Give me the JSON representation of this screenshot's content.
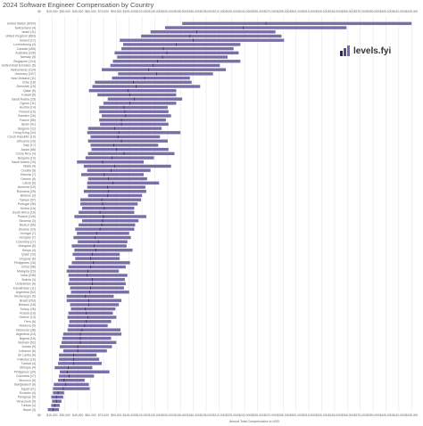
{
  "title": "2024 Software Engineer Compensation by Country",
  "logo": {
    "text": "levels.fyi",
    "icon": "levels-fyi-logo-icon"
  },
  "colors": {
    "bar": "#7A6EA8",
    "median": "#2E2550",
    "grid": "#E6E6E6",
    "text": "#666666"
  },
  "chart_data": {
    "type": "bar",
    "orientation": "horizontal",
    "title": "2024 Software Engineer Compensation by Country",
    "xlabel": "Annual Total Compensation in USD",
    "ylabel": "",
    "xlim": [
      0,
      440000
    ],
    "x_ticks": [
      0,
      15000,
      30000,
      45000,
      60000,
      75000,
      90000,
      105000,
      120000,
      135000,
      150000,
      165000,
      180000,
      195000,
      210000,
      225000,
      240000,
      255000,
      270000,
      285000,
      300000,
      315000,
      330000,
      345000,
      360000,
      375000,
      390000,
      405000,
      420000,
      435000
    ],
    "x_tick_labels": [
      "$0",
      "$15,000",
      "$30,000",
      "$45,000",
      "$60,000",
      "$75,000",
      "$90,000",
      "$105,000",
      "$120,000",
      "$135,000",
      "$150,000",
      "$165,000",
      "$180,000",
      "$195,000",
      "$210,000",
      "$225,000",
      "$240,000",
      "$255,000",
      "$270,000",
      "$285,000",
      "$300,000",
      "$315,000",
      "$330,000",
      "$345,000",
      "$360,000",
      "$375,000",
      "$390,000",
      "$405,000",
      "$420,000",
      "$435,000"
    ],
    "grid": true,
    "series": [
      {
        "categories": [
          "United States (6000)",
          "Switzerland (4)",
          "Israel (11)",
          "United Kingdom (863)",
          "Ireland (17)",
          "Luxembourg (4)",
          "Canada (455)",
          "Australia (228)",
          "Norway (5)",
          "Singapore (114)",
          "United Arab Emirates (5)",
          "Netherlands (124)",
          "Germany (297)",
          "New Zealand (11)",
          "Chile (18)",
          "Denmark (15)",
          "Qatar (5)",
          "Kuwait (5)",
          "Saudi Arabia (15)",
          "Cyprus (11)",
          "Austria (14)",
          "Finland (16)",
          "Sweden (26)",
          "France (85)",
          "Spain (41)",
          "Belgium (12)",
          "Hong Kong (34)",
          "Czech Republic (19)",
          "Lithuania (10)",
          "Italy (17)",
          "Japan (68)",
          "Costa Rica (4)",
          "Bulgaria (10)",
          "Saudi Arabia (15)",
          "Malta (4)",
          "Croatia (5)",
          "Estonia (7)",
          "Greece (9)",
          "Latvia (5)",
          "Armenia (15)",
          "Romania (29)",
          "Belarus (3)",
          "Taiwan (57)",
          "Portugal (36)",
          "Serbia (16)",
          "South Africa (16)",
          "Poland (126)",
          "Slovenia (3)",
          "Mexico (56)",
          "Ukraine (23)",
          "Georgia (7)",
          "Hungary (7)",
          "Colombia (17)",
          "Mongolia (5)",
          "Kenya (4)",
          "Qatar (10)",
          "Uruguay (6)",
          "Philippines (16)",
          "China (58)",
          "Malaysia (20)",
          "India (238)",
          "Bolivia (3)",
          "Uzbekistan (6)",
          "Kazakhstan (11)",
          "Argentina (52)",
          "Montenegro (5)",
          "Brazil (203)",
          "Belarus (18)",
          "Turkey (28)",
          "Russia (18)",
          "Greece (13)",
          "Peru (6)",
          "Moldova (5)",
          "Indonesia (38)",
          "Argentina (24)",
          "Nigeria (15)",
          "Vietnam (52)",
          "Jordan (9)",
          "Lebanon (6)",
          "Sri Lanka (6)",
          "Pakistan (16)",
          "Tunisia (4)",
          "Ethiopia (4)",
          "Philippines (24)",
          "Colombia (17)",
          "Morocco (5)",
          "Bangladesh (6)",
          "Egypt (21)",
          "Ecuador (4)",
          "Paraguay (5)",
          "Venezuela (5)",
          "Tunisia (4)",
          "Nepal (3)"
        ],
        "ranges": [
          [
            167000,
            435000
          ],
          [
            147000,
            359000
          ],
          [
            130000,
            276000
          ],
          [
            119000,
            283000
          ],
          [
            94000,
            286000
          ],
          [
            98000,
            235000
          ],
          [
            96000,
            227000
          ],
          [
            88000,
            233000
          ],
          [
            91000,
            220000
          ],
          [
            86000,
            235000
          ],
          [
            83000,
            211000
          ],
          [
            73000,
            218000
          ],
          [
            92000,
            203000
          ],
          [
            85000,
            176000
          ],
          [
            65000,
            178000
          ],
          [
            62000,
            188000
          ],
          [
            58000,
            160000
          ],
          [
            68000,
            160000
          ],
          [
            80000,
            167000
          ],
          [
            75000,
            160000
          ],
          [
            70000,
            150000
          ],
          [
            70000,
            151000
          ],
          [
            73000,
            154000
          ],
          [
            70000,
            148000
          ],
          [
            71000,
            151000
          ],
          [
            57000,
            143000
          ],
          [
            56000,
            165000
          ],
          [
            60000,
            141000
          ],
          [
            57000,
            150000
          ],
          [
            60000,
            139000
          ],
          [
            61000,
            151000
          ],
          [
            57000,
            158000
          ],
          [
            54000,
            134000
          ],
          [
            44000,
            122000
          ],
          [
            52000,
            154000
          ],
          [
            56000,
            130000
          ],
          [
            49000,
            122000
          ],
          [
            57000,
            126000
          ],
          [
            56000,
            140000
          ],
          [
            56000,
            124000
          ],
          [
            52000,
            125000
          ],
          [
            57000,
            120000
          ],
          [
            48000,
            119000
          ],
          [
            48000,
            115000
          ],
          [
            50000,
            111000
          ],
          [
            46000,
            111000
          ],
          [
            41000,
            125000
          ],
          [
            50000,
            116000
          ],
          [
            46000,
            112000
          ],
          [
            42000,
            111000
          ],
          [
            44000,
            105000
          ],
          [
            40000,
            107000
          ],
          [
            45000,
            103000
          ],
          [
            38000,
            102000
          ],
          [
            41000,
            109000
          ],
          [
            39000,
            94000
          ],
          [
            42000,
            94000
          ],
          [
            38000,
            106000
          ],
          [
            34000,
            101000
          ],
          [
            32000,
            93000
          ],
          [
            34000,
            103000
          ],
          [
            35000,
            100000
          ],
          [
            34000,
            101000
          ],
          [
            36000,
            99000
          ],
          [
            37000,
            105000
          ],
          [
            32000,
            87000
          ],
          [
            32000,
            96000
          ],
          [
            36000,
            93000
          ],
          [
            37000,
            89000
          ],
          [
            34000,
            86000
          ],
          [
            33000,
            90000
          ],
          [
            35000,
            84000
          ],
          [
            34000,
            80000
          ],
          [
            33000,
            95000
          ],
          [
            28000,
            96000
          ],
          [
            27000,
            84000
          ],
          [
            26000,
            90000
          ],
          [
            24000,
            85000
          ],
          [
            28000,
            79000
          ],
          [
            23000,
            67000
          ],
          [
            23000,
            70000
          ],
          [
            22000,
            73000
          ],
          [
            18000,
            62000
          ],
          [
            24000,
            82000
          ],
          [
            23000,
            64000
          ],
          [
            22000,
            53000
          ],
          [
            17000,
            58000
          ],
          [
            16000,
            59000
          ],
          [
            16000,
            29000
          ],
          [
            14000,
            28000
          ],
          [
            15000,
            26000
          ],
          [
            14000,
            24000
          ],
          [
            10000,
            23000
          ]
        ],
        "medians": [
          265000,
          238000,
          184000,
          176000,
          180000,
          160000,
          145000,
          149000,
          144000,
          138000,
          133000,
          128000,
          137000,
          123000,
          110000,
          113000,
          104000,
          106000,
          111000,
          106000,
          99000,
          100000,
          101000,
          96000,
          96000,
          88000,
          93000,
          92000,
          96000,
          87000,
          90000,
          99000,
          85000,
          74000,
          88000,
          84000,
          76000,
          81000,
          86000,
          80000,
          81000,
          80000,
          73000,
          74000,
          76000,
          71000,
          75000,
          74000,
          73000,
          71000,
          67000,
          65000,
          69000,
          64000,
          66000,
          62000,
          60000,
          63000,
          60000,
          57000,
          56000,
          62000,
          62000,
          60000,
          59000,
          54000,
          58000,
          58000,
          54000,
          55000,
          57000,
          55000,
          53000,
          50000,
          48000,
          48000,
          48000,
          45000,
          45000,
          40000,
          40000,
          40000,
          34000,
          33000,
          35000,
          29000,
          31000,
          28000,
          22000,
          20000,
          20000,
          18000,
          16000
        ]
      }
    ]
  }
}
